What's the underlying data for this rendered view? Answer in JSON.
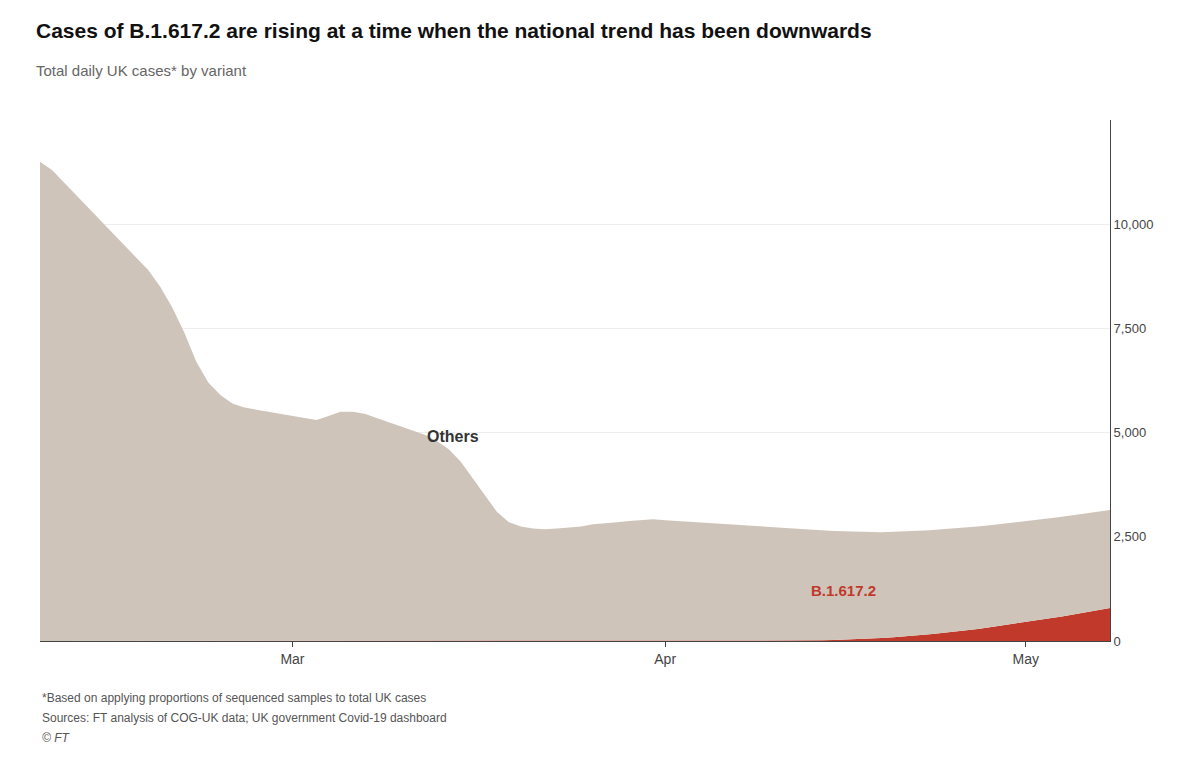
{
  "chart_data": {
    "type": "area",
    "stacked": true,
    "title": "Cases of B.1.617.2 are rising at a time when the national trend has been downwards",
    "subtitle": "Total daily UK cases* by variant",
    "annotations": [
      "*Based on applying proportions of sequenced samples to total UK cases",
      "Sources: FT analysis of COG-UK data; UK government Covid-19 dashboard",
      "© FT"
    ],
    "categories": [
      null,
      null,
      null,
      null,
      null,
      null,
      null,
      null,
      null,
      null,
      null,
      null,
      null,
      null,
      null,
      null,
      null,
      null,
      null,
      null,
      null,
      "Mar",
      null,
      null,
      null,
      null,
      null,
      null,
      null,
      null,
      null,
      null,
      null,
      null,
      null,
      null,
      null,
      null,
      null,
      null,
      null,
      null,
      null,
      null,
      null,
      null,
      null,
      null,
      null,
      null,
      null,
      null,
      "Apr",
      null,
      null,
      null,
      null,
      null,
      null,
      null,
      null,
      null,
      null,
      null,
      null,
      null,
      null,
      null,
      null,
      null,
      null,
      null,
      null,
      null,
      null,
      null,
      null,
      null,
      null,
      null,
      null,
      null,
      "May",
      null,
      null,
      null,
      null,
      null,
      null,
      null
    ],
    "series": [
      {
        "name": "B.1.617.2",
        "color": "#c0392b",
        "values": [
          0,
          0,
          0,
          0,
          0,
          0,
          0,
          0,
          0,
          0,
          0,
          0,
          0,
          0,
          0,
          0,
          0,
          0,
          0,
          0,
          0,
          0,
          0,
          0,
          0,
          0,
          0,
          0,
          0,
          0,
          0,
          0,
          0,
          0,
          0,
          0,
          0,
          0,
          0,
          0,
          0,
          0,
          0,
          0,
          0,
          0,
          0,
          0,
          0,
          0,
          0,
          0,
          0,
          0,
          0,
          0,
          0,
          0,
          0,
          0,
          2,
          4,
          6,
          8,
          12,
          16,
          22,
          30,
          40,
          55,
          70,
          90,
          110,
          135,
          160,
          190,
          220,
          255,
          290,
          330,
          370,
          410,
          455,
          500,
          545,
          590,
          640,
          690,
          740,
          790
        ]
      },
      {
        "name": "Others",
        "color": "#cfc4ba",
        "values": [
          11500,
          11300,
          11000,
          10700,
          10400,
          10100,
          9800,
          9500,
          9200,
          8900,
          8500,
          8000,
          7400,
          6700,
          6200,
          5900,
          5700,
          5600,
          5550,
          5500,
          5450,
          5400,
          5350,
          5300,
          5400,
          5500,
          5500,
          5450,
          5350,
          5250,
          5150,
          5050,
          4950,
          4800,
          4600,
          4300,
          3900,
          3500,
          3100,
          2850,
          2750,
          2700,
          2680,
          2700,
          2720,
          2750,
          2800,
          2820,
          2850,
          2880,
          2900,
          2920,
          2900,
          2880,
          2860,
          2840,
          2820,
          2800,
          2780,
          2760,
          2740,
          2720,
          2700,
          2680,
          2660,
          2640,
          2620,
          2600,
          2580,
          2560,
          2540,
          2530,
          2520,
          2510,
          2500,
          2490,
          2480,
          2470,
          2460,
          2450,
          2440,
          2430,
          2420,
          2410,
          2400,
          2390,
          2380,
          2370,
          2360,
          2350
        ]
      }
    ],
    "ylim": [
      0,
      12500
    ],
    "yticks": [
      0,
      {
        "value": 2500,
        "label": "2,500"
      },
      {
        "value": 5000,
        "label": "5,000"
      },
      {
        "value": 7500,
        "label": "7,500"
      },
      {
        "value": 10000,
        "label": "10,000"
      }
    ],
    "grid": true
  }
}
